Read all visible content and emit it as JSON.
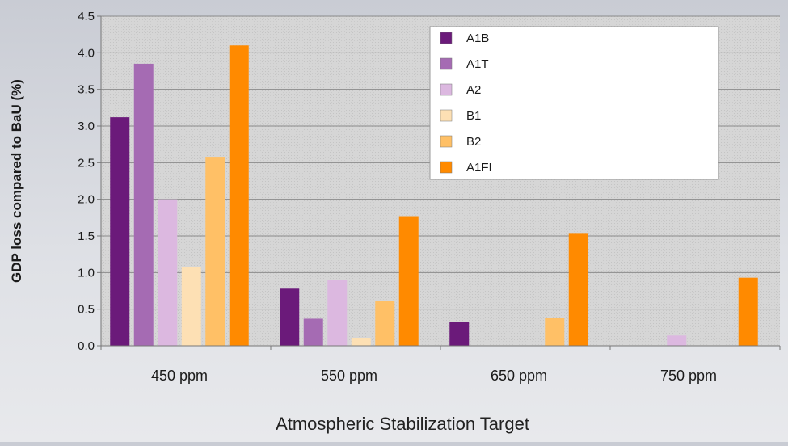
{
  "chart_data": {
    "type": "bar",
    "title": "",
    "xlabel": "Atmospheric Stabilization Target",
    "ylabel": "GDP loss compared to BaU (%)",
    "ylim": [
      0,
      4.5
    ],
    "yticks": [
      "0.0",
      "0.5",
      "1.0",
      "1.5",
      "2.0",
      "2.5",
      "3.0",
      "3.5",
      "4.0",
      "4.5"
    ],
    "categories": [
      "450 ppm",
      "550 ppm",
      "650 ppm",
      "750 ppm"
    ],
    "grid": true,
    "legend_position": "top-right",
    "series": [
      {
        "name": "A1B",
        "color": "#6b1a7a",
        "values": [
          3.12,
          0.78,
          0.32,
          0.0
        ]
      },
      {
        "name": "A1T",
        "color": "#a56bb3",
        "values": [
          3.85,
          0.37,
          0.0,
          0.0
        ]
      },
      {
        "name": "A2",
        "color": "#dcb8e0",
        "values": [
          2.0,
          0.9,
          0.0,
          0.14
        ]
      },
      {
        "name": "B1",
        "color": "#fde0b4",
        "values": [
          1.07,
          0.11,
          0.0,
          0.0
        ]
      },
      {
        "name": "B2",
        "color": "#ffc066",
        "values": [
          2.58,
          0.61,
          0.38,
          0.0
        ]
      },
      {
        "name": "A1FI",
        "color": "#ff8a00",
        "values": [
          4.1,
          1.77,
          1.54,
          0.93
        ]
      }
    ]
  }
}
